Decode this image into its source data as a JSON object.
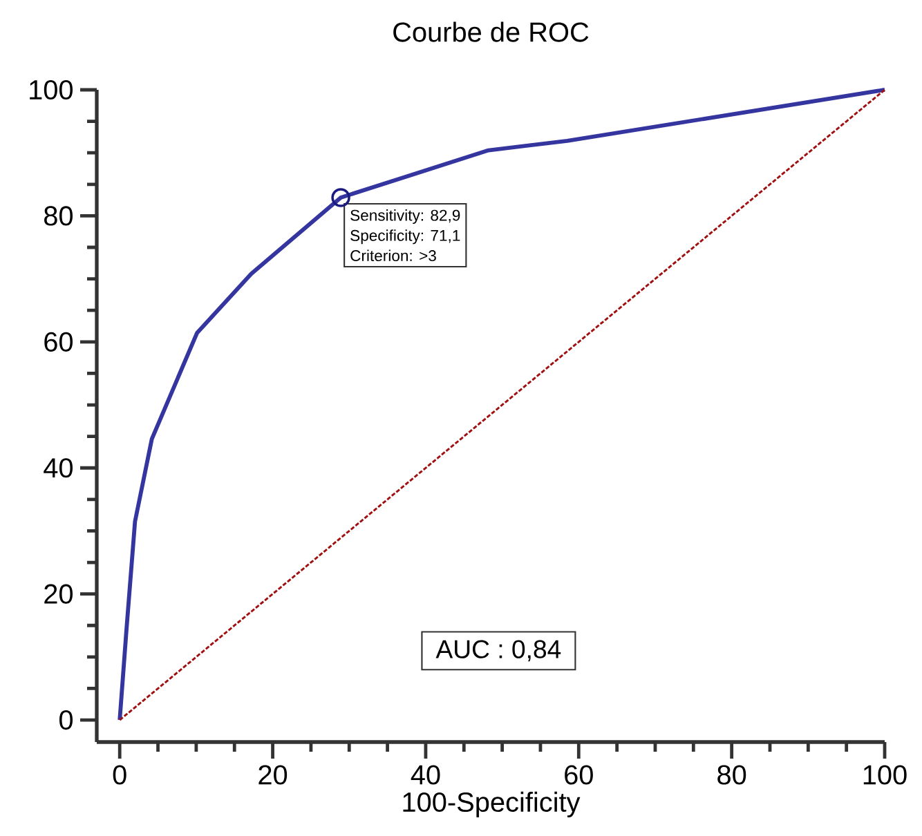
{
  "chart_data": {
    "type": "line",
    "title": "Courbe de ROC",
    "xlabel": "100-Specificity",
    "xlim": [
      -3,
      100
    ],
    "ylim": [
      -3.5,
      100
    ],
    "xticks": [
      0,
      20,
      40,
      60,
      80,
      100
    ],
    "yticks": [
      0,
      20,
      40,
      60,
      80,
      100
    ],
    "series": [
      {
        "x": [
          0,
          0.9,
          2,
          4.2,
          10.1,
          17.2,
          28.9,
          48.2,
          58.5,
          100
        ],
        "values": [
          0,
          14.6,
          31.5,
          44.6,
          61.4,
          70.8,
          82.9,
          90.4,
          91.9,
          100
        ],
        "color": "#3535a0",
        "marker": "none",
        "line_style": "solid"
      },
      {
        "x": [
          0,
          100
        ],
        "values": [
          0,
          100
        ],
        "color": "#a01010",
        "marker": "none",
        "line_style": "dotted"
      },
      {
        "type": "scatter",
        "x": [
          28.9
        ],
        "values": [
          82.9
        ],
        "color": "#1a1a80",
        "marker": "circle"
      }
    ],
    "annotations": [
      {
        "text": "Sensitivity: 82,9",
        "x": 28.9,
        "y": 82.9
      },
      "Specificity: 71,1",
      "Criterion: >3",
      "AUC : 0,84"
    ]
  }
}
